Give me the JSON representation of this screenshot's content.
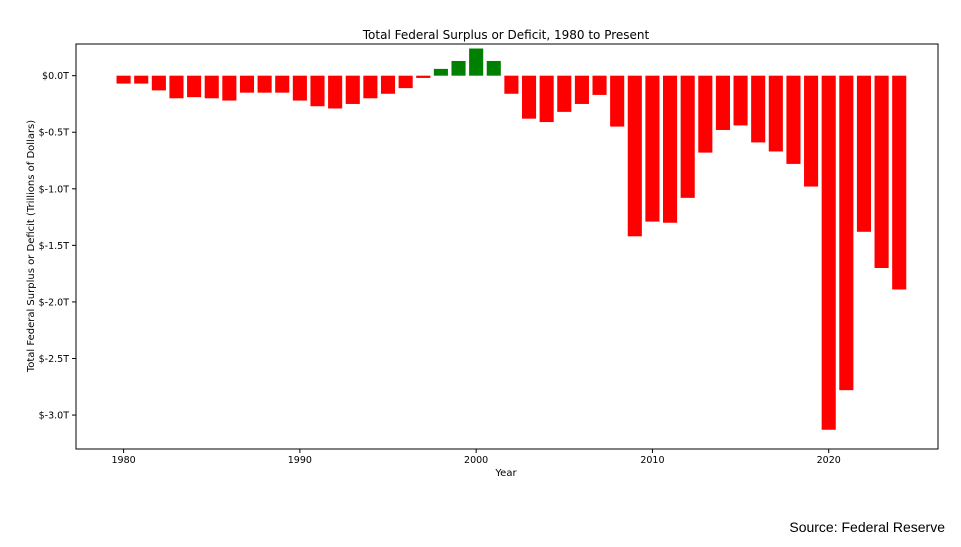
{
  "chart_data": {
    "type": "bar",
    "title": "Total Federal Surplus or Deficit, 1980 to Present",
    "xlabel": "Year",
    "ylabel": "Total Federal Surplus or Deficit (Trillions of Dollars)",
    "xlim": [
      1977.3,
      2026.2
    ],
    "ylim": [
      -3.3,
      0.28
    ],
    "x_ticks": [
      1980,
      1990,
      2000,
      2010,
      2020
    ],
    "y_ticks": [
      {
        "value": 0.0,
        "label": "$0.0T"
      },
      {
        "value": -0.5,
        "label": "$-0.5T"
      },
      {
        "value": -1.0,
        "label": "$-1.0T"
      },
      {
        "value": -1.5,
        "label": "$-1.5T"
      },
      {
        "value": -2.0,
        "label": "$-2.0T"
      },
      {
        "value": -2.5,
        "label": "$-2.5T"
      },
      {
        "value": -3.0,
        "label": "$-3.0T"
      }
    ],
    "grid": false,
    "colors": {
      "surplus": "#008000",
      "deficit": "#ff0000"
    },
    "x": [
      1980,
      1981,
      1982,
      1983,
      1984,
      1985,
      1986,
      1987,
      1988,
      1989,
      1990,
      1991,
      1992,
      1993,
      1994,
      1995,
      1996,
      1997,
      1998,
      1999,
      2000,
      2001,
      2002,
      2003,
      2004,
      2005,
      2006,
      2007,
      2008,
      2009,
      2010,
      2011,
      2012,
      2013,
      2014,
      2015,
      2016,
      2017,
      2018,
      2019,
      2020,
      2021,
      2022,
      2023,
      2024
    ],
    "values": [
      -0.07,
      -0.07,
      -0.13,
      -0.2,
      -0.19,
      -0.2,
      -0.22,
      -0.15,
      -0.15,
      -0.15,
      -0.22,
      -0.27,
      -0.29,
      -0.25,
      -0.2,
      -0.16,
      -0.11,
      -0.02,
      0.06,
      0.13,
      0.24,
      0.13,
      -0.16,
      -0.38,
      -0.41,
      -0.32,
      -0.25,
      -0.17,
      -0.45,
      -1.42,
      -1.29,
      -1.3,
      -1.08,
      -0.68,
      -0.48,
      -0.44,
      -0.59,
      -0.67,
      -0.78,
      -0.98,
      -3.13,
      -2.78,
      -1.38,
      -1.7,
      -1.89
    ]
  },
  "source": "Source: Federal Reserve"
}
